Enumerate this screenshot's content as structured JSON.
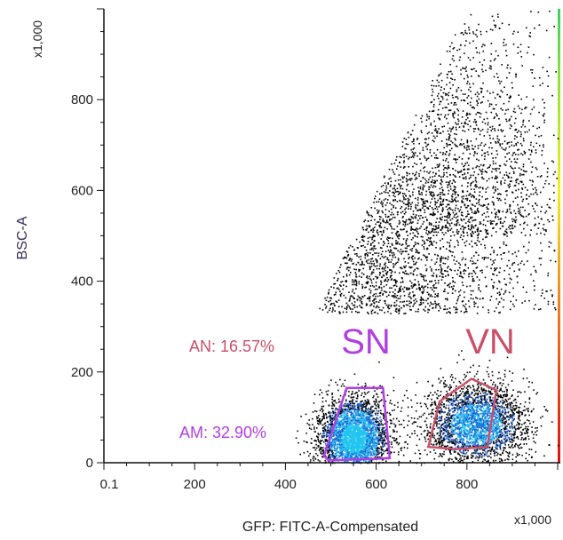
{
  "chart_data": {
    "type": "scatter",
    "title": "",
    "xlabel": "GFP: FITC-A-Compensated",
    "ylabel": "BSC-A",
    "x_multiplier": "x1,000",
    "y_multiplier": "x1,000",
    "xlim": [
      0,
      1000
    ],
    "ylim": [
      0,
      1000
    ],
    "x_ticks": [
      {
        "value": 0,
        "label": "0.1"
      },
      {
        "value": 200,
        "label": "200"
      },
      {
        "value": 400,
        "label": "400"
      },
      {
        "value": 600,
        "label": "600"
      },
      {
        "value": 800,
        "label": "800"
      }
    ],
    "y_ticks": [
      {
        "value": 0,
        "label": "0"
      },
      {
        "value": 200,
        "label": "200"
      },
      {
        "value": 400,
        "label": "400"
      },
      {
        "value": 600,
        "label": "600"
      },
      {
        "value": 800,
        "label": "800"
      }
    ],
    "density_coloring": true,
    "color_scale": [
      "#000000",
      "#1e5fd0",
      "#22c4f0",
      "#3cd060",
      "#f0f020",
      "#f08020",
      "#e01010"
    ],
    "populations": [
      {
        "center": [
          550,
          55
        ],
        "spread": [
          38,
          45
        ],
        "weight": 0.34
      },
      {
        "center": [
          820,
          85
        ],
        "spread": [
          55,
          45
        ],
        "weight": 0.3
      },
      {
        "center": [
          640,
          330
        ],
        "spread": [
          160,
          230
        ],
        "weight": 0.22
      },
      {
        "center": [
          800,
          500
        ],
        "spread": [
          110,
          280
        ],
        "weight": 0.14
      }
    ],
    "gates": [
      {
        "name": "SN",
        "label": "AM: 32.90%",
        "color": "#b03fe0",
        "polygon": [
          [
            485,
            15
          ],
          [
            535,
            165
          ],
          [
            615,
            165
          ],
          [
            630,
            10
          ],
          [
            495,
            5
          ]
        ]
      },
      {
        "name": "VN",
        "label": "AN: 16.57%",
        "color": "#c8506a",
        "polygon": [
          [
            715,
            35
          ],
          [
            740,
            135
          ],
          [
            810,
            185
          ],
          [
            865,
            160
          ],
          [
            845,
            35
          ],
          [
            775,
            30
          ]
        ]
      }
    ]
  }
}
